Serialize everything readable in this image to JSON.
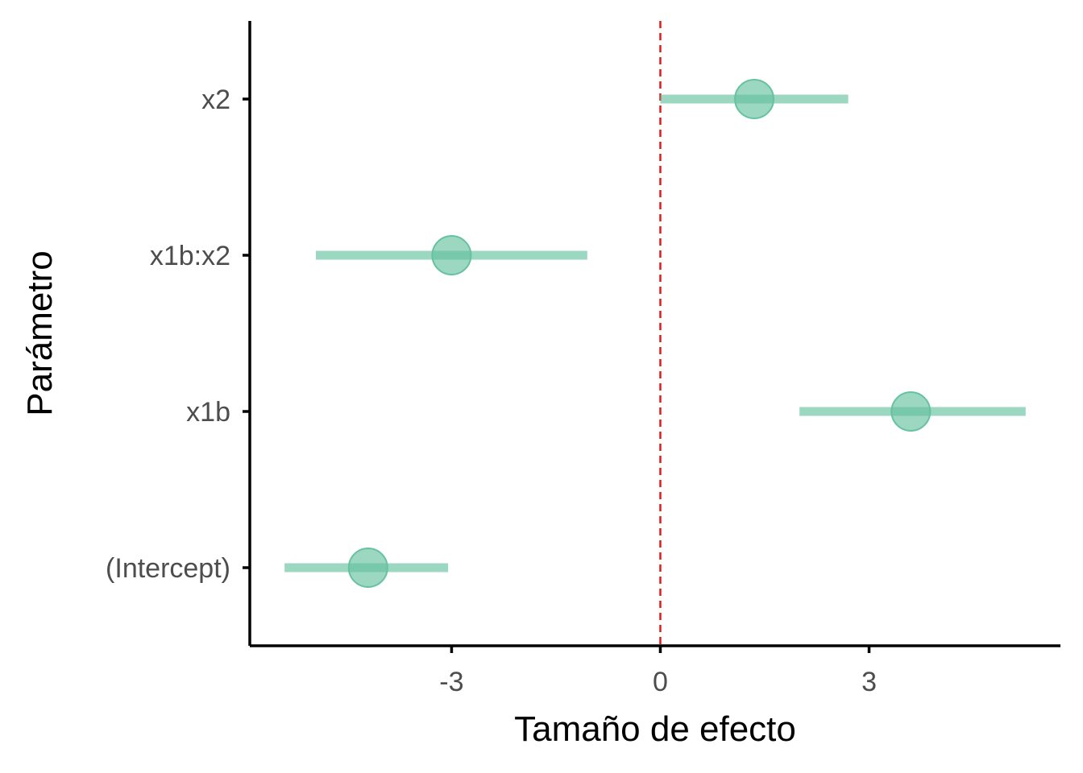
{
  "chart_data": {
    "type": "forest",
    "title": "",
    "xlabel": "Tamaño de efecto",
    "ylabel": "Parámetro",
    "xlim": [
      -5.9,
      5.75
    ],
    "x_ticks": [
      -3,
      0,
      3
    ],
    "x_tick_labels": [
      "-3",
      "0",
      "3"
    ],
    "reference_line": {
      "x": 0,
      "style": "dashed",
      "color": "#e31a1c"
    },
    "point_color": "#66c2a0",
    "grid": false,
    "legend": "none",
    "categories": [
      "(Intercept)",
      "x1b",
      "x1b:x2",
      "x2"
    ],
    "estimates": [
      {
        "parameter": "(Intercept)",
        "estimate": -4.2,
        "lower": -5.4,
        "upper": -3.05
      },
      {
        "parameter": "x1b",
        "estimate": 3.6,
        "lower": 2.0,
        "upper": 5.25
      },
      {
        "parameter": "x1b:x2",
        "estimate": -3.0,
        "lower": -4.95,
        "upper": -1.05
      },
      {
        "parameter": "x2",
        "estimate": 1.35,
        "lower": 0.0,
        "upper": 2.7
      }
    ]
  }
}
